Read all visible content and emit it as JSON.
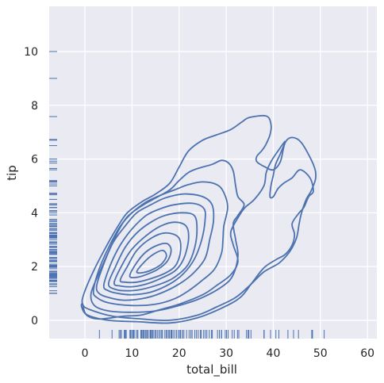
{
  "chart_data": {
    "type": "kde-contour-with-rug",
    "xlabel": "total_bill",
    "ylabel": "tip",
    "xlim": [
      -7.6,
      62
    ],
    "ylim": [
      -0.68,
      11.68
    ],
    "x_ticks": [
      0,
      10,
      20,
      30,
      40,
      50,
      60
    ],
    "y_ticks": [
      0,
      2,
      4,
      6,
      8,
      10
    ],
    "grid": true,
    "style": {
      "background": "#eaeaf2",
      "gridline": "#ffffff",
      "line": "#4c72b0"
    },
    "contours": [
      {
        "level": 1,
        "points": [
          [
            -0.5,
            0.6
          ],
          [
            0.3,
            0.2
          ],
          [
            3,
            0.05
          ],
          [
            8,
            0.15
          ],
          [
            12,
            0.2
          ],
          [
            16,
            0.4
          ],
          [
            20,
            0.6
          ],
          [
            25,
            0.95
          ],
          [
            28,
            1.3
          ],
          [
            31,
            1.7
          ],
          [
            32.5,
            2.2
          ],
          [
            31.5,
            2.8
          ],
          [
            31,
            3.3
          ],
          [
            32.8,
            3.9
          ],
          [
            34,
            4.2
          ],
          [
            36,
            4.5
          ],
          [
            38,
            5.0
          ],
          [
            38.5,
            5.5
          ],
          [
            39.5,
            5.9
          ],
          [
            41,
            6.3
          ],
          [
            42.5,
            6.65
          ],
          [
            41.5,
            6.2
          ],
          [
            40.5,
            5.8
          ],
          [
            40,
            5.4
          ],
          [
            39.5,
            5.0
          ],
          [
            39.3,
            4.6
          ],
          [
            40,
            4.6
          ],
          [
            41,
            4.9
          ],
          [
            42.2,
            5.1
          ],
          [
            44,
            5.3
          ],
          [
            45.7,
            5.6
          ],
          [
            47.8,
            5.3
          ],
          [
            48.5,
            4.8
          ],
          [
            47.5,
            4.6
          ],
          [
            46.5,
            4.2
          ],
          [
            45.5,
            4.0
          ],
          [
            44,
            3.6
          ],
          [
            44.5,
            3.2
          ],
          [
            44,
            2.8
          ],
          [
            42.5,
            2.45
          ],
          [
            40.5,
            2.25
          ],
          [
            38,
            1.95
          ],
          [
            35.5,
            1.4
          ],
          [
            33,
            0.85
          ],
          [
            29,
            0.45
          ],
          [
            24,
            0.1
          ],
          [
            18,
            -0.1
          ],
          [
            11,
            -0.05
          ],
          [
            5,
            0.0
          ],
          [
            0.5,
            0.2
          ],
          [
            -0.7,
            0.5
          ]
        ],
        "closed": true
      },
      {
        "level": 1.5,
        "points": [
          [
            -0.5,
            0.6
          ],
          [
            -0.2,
            1.0
          ],
          [
            2,
            1.9
          ],
          [
            5,
            2.9
          ],
          [
            7,
            3.5
          ],
          [
            9,
            4.0
          ],
          [
            12,
            4.4
          ],
          [
            15,
            4.7
          ],
          [
            18,
            5.1
          ],
          [
            20,
            5.7
          ],
          [
            22,
            6.3
          ],
          [
            25,
            6.7
          ],
          [
            28,
            6.9
          ],
          [
            31,
            7.1
          ],
          [
            33.5,
            7.4
          ],
          [
            35,
            7.55
          ],
          [
            38.5,
            7.6
          ],
          [
            39.5,
            7.3
          ],
          [
            39.3,
            6.9
          ],
          [
            38.3,
            6.5
          ],
          [
            37.5,
            6.3
          ],
          [
            36.5,
            6.1
          ],
          [
            36.5,
            5.9
          ],
          [
            38.3,
            5.7
          ],
          [
            40,
            5.6
          ],
          [
            41.5,
            5.9
          ],
          [
            42.5,
            6.6
          ],
          [
            44,
            6.8
          ],
          [
            46,
            6.6
          ],
          [
            48.5,
            5.8
          ],
          [
            49,
            5.3
          ],
          [
            48,
            4.8
          ],
          [
            47,
            4.5
          ],
          [
            46,
            4.0
          ],
          [
            45.5,
            3.6
          ],
          [
            45,
            3.1
          ],
          [
            44,
            2.7
          ],
          [
            42.8,
            2.4
          ],
          [
            41,
            2.1
          ],
          [
            38,
            1.8
          ],
          [
            35,
            1.3
          ],
          [
            32,
            0.85
          ],
          [
            28,
            0.5
          ],
          [
            24,
            0.2
          ],
          [
            18,
            0.0
          ],
          [
            12,
            0.05
          ],
          [
            6,
            0.15
          ],
          [
            1,
            0.4
          ]
        ],
        "closed": true
      },
      {
        "level": 2,
        "points": [
          [
            1.3,
            1.0
          ],
          [
            3,
            1.75
          ],
          [
            5,
            2.55
          ],
          [
            7,
            3.3
          ],
          [
            9,
            3.85
          ],
          [
            12,
            4.25
          ],
          [
            15,
            4.55
          ],
          [
            18,
            4.85
          ],
          [
            20,
            5.2
          ],
          [
            22,
            5.5
          ],
          [
            24,
            5.65
          ],
          [
            27,
            5.8
          ],
          [
            29,
            5.95
          ],
          [
            30.5,
            5.85
          ],
          [
            31.5,
            5.55
          ],
          [
            32,
            5.0
          ],
          [
            32.5,
            4.6
          ],
          [
            33.8,
            4.3
          ],
          [
            32.5,
            3.9
          ],
          [
            31.5,
            3.6
          ],
          [
            32,
            3.0
          ],
          [
            32.5,
            2.4
          ],
          [
            31.5,
            1.7
          ],
          [
            29.5,
            1.3
          ],
          [
            25,
            0.85
          ],
          [
            20,
            0.55
          ],
          [
            15,
            0.35
          ],
          [
            10,
            0.3
          ],
          [
            5,
            0.35
          ],
          [
            2,
            0.55
          ]
        ],
        "closed": true
      },
      {
        "level": 3,
        "points": [
          [
            1.8,
            1.1
          ],
          [
            3,
            1.9
          ],
          [
            5,
            2.7
          ],
          [
            7.5,
            3.5
          ],
          [
            10,
            4.0
          ],
          [
            13,
            4.4
          ],
          [
            16,
            4.65
          ],
          [
            19,
            4.85
          ],
          [
            22,
            5.05
          ],
          [
            25,
            5.15
          ],
          [
            28,
            5.05
          ],
          [
            29.5,
            4.75
          ],
          [
            30.3,
            4.2
          ],
          [
            29.5,
            3.5
          ],
          [
            29.3,
            3.0
          ],
          [
            29,
            2.5
          ],
          [
            27.5,
            1.9
          ],
          [
            25,
            1.5
          ],
          [
            22,
            1.1
          ],
          [
            19,
            0.8
          ],
          [
            15,
            0.6
          ],
          [
            10,
            0.55
          ],
          [
            5,
            0.65
          ],
          [
            2.5,
            0.85
          ]
        ],
        "closed": true
      },
      {
        "level": 4,
        "points": [
          [
            2.5,
            1.3
          ],
          [
            4,
            2.1
          ],
          [
            6,
            2.9
          ],
          [
            8.5,
            3.5
          ],
          [
            11,
            4.0
          ],
          [
            14,
            4.3
          ],
          [
            17,
            4.55
          ],
          [
            21,
            4.7
          ],
          [
            25,
            4.6
          ],
          [
            27,
            4.3
          ],
          [
            27.3,
            3.7
          ],
          [
            26.5,
            3.0
          ],
          [
            25.5,
            2.3
          ],
          [
            23,
            1.75
          ],
          [
            20,
            1.35
          ],
          [
            16,
            1.0
          ],
          [
            12,
            0.8
          ],
          [
            8,
            0.75
          ],
          [
            5,
            0.85
          ],
          [
            3,
            1.0
          ]
        ],
        "closed": true
      },
      {
        "level": 5,
        "points": [
          [
            4,
            1.3
          ],
          [
            5.5,
            2.1
          ],
          [
            7.5,
            2.8
          ],
          [
            10,
            3.4
          ],
          [
            13,
            3.9
          ],
          [
            16,
            4.15
          ],
          [
            19,
            4.3
          ],
          [
            23,
            4.35
          ],
          [
            25.3,
            4.15
          ],
          [
            25.5,
            3.7
          ],
          [
            24.8,
            3.0
          ],
          [
            23.3,
            2.3
          ],
          [
            21,
            1.75
          ],
          [
            18,
            1.35
          ],
          [
            14,
            1.05
          ],
          [
            10,
            0.95
          ],
          [
            7,
            1.0
          ],
          [
            5,
            1.1
          ]
        ],
        "closed": true
      },
      {
        "level": 6,
        "points": [
          [
            5,
            1.35
          ],
          [
            6.5,
            2.0
          ],
          [
            8.5,
            2.7
          ],
          [
            11,
            3.25
          ],
          [
            14,
            3.65
          ],
          [
            17,
            3.9
          ],
          [
            20.5,
            4.0
          ],
          [
            23.2,
            3.9
          ],
          [
            23.8,
            3.4
          ],
          [
            23.3,
            2.7
          ],
          [
            21.8,
            2.05
          ],
          [
            19,
            1.6
          ],
          [
            16,
            1.35
          ],
          [
            12,
            1.15
          ],
          [
            9,
            1.1
          ],
          [
            6.5,
            1.15
          ]
        ],
        "closed": true
      },
      {
        "level": 7,
        "points": [
          [
            6.2,
            1.4
          ],
          [
            8,
            2.1
          ],
          [
            10,
            2.65
          ],
          [
            13,
            3.15
          ],
          [
            16,
            3.5
          ],
          [
            19,
            3.65
          ],
          [
            21.5,
            3.5
          ],
          [
            22,
            3.0
          ],
          [
            21,
            2.3
          ],
          [
            19.2,
            1.85
          ],
          [
            16,
            1.55
          ],
          [
            13,
            1.35
          ],
          [
            10,
            1.25
          ],
          [
            7.5,
            1.28
          ]
        ],
        "closed": true
      },
      {
        "level": 8,
        "points": [
          [
            7.5,
            1.5
          ],
          [
            9,
            2.0
          ],
          [
            11,
            2.6
          ],
          [
            14,
            3.05
          ],
          [
            17,
            3.25
          ],
          [
            19.8,
            3.1
          ],
          [
            20.3,
            2.6
          ],
          [
            19.3,
            2.05
          ],
          [
            17,
            1.75
          ],
          [
            14,
            1.55
          ],
          [
            11,
            1.42
          ],
          [
            8.5,
            1.42
          ]
        ],
        "closed": true
      },
      {
        "level": 9,
        "points": [
          [
            9.5,
            1.65
          ],
          [
            11,
            2.15
          ],
          [
            13,
            2.55
          ],
          [
            15.5,
            2.8
          ],
          [
            17.5,
            2.85
          ],
          [
            18.3,
            2.6
          ],
          [
            17.5,
            2.2
          ],
          [
            15.5,
            1.9
          ],
          [
            13,
            1.7
          ],
          [
            11,
            1.6
          ]
        ],
        "closed": true
      },
      {
        "level": 10,
        "points": [
          [
            11,
            1.8
          ],
          [
            12.5,
            2.15
          ],
          [
            14.5,
            2.45
          ],
          [
            16.5,
            2.6
          ],
          [
            17.3,
            2.4
          ],
          [
            16.3,
            2.1
          ],
          [
            14.5,
            1.9
          ],
          [
            12.5,
            1.78
          ]
        ],
        "closed": true
      }
    ],
    "rug_x": [
      3.07,
      5.75,
      7.25,
      7.51,
      7.74,
      8.35,
      8.51,
      8.52,
      8.58,
      8.77,
      9.55,
      9.6,
      9.68,
      9.78,
      10.07,
      10.27,
      10.33,
      10.34,
      10.59,
      11.02,
      11.24,
      11.87,
      12.02,
      12.26,
      12.46,
      12.6,
      12.9,
      13.0,
      13.27,
      13.42,
      13.81,
      13.94,
      14.07,
      14.31,
      14.48,
      14.83,
      15.04,
      15.36,
      15.69,
      15.98,
      16.29,
      16.45,
      16.97,
      17.26,
      17.51,
      17.82,
      17.92,
      18.24,
      18.29,
      18.43,
      18.71,
      19.08,
      19.44,
      19.81,
      20.08,
      20.29,
      20.65,
      20.69,
      21.01,
      21.58,
      22.12,
      22.49,
      22.76,
      23.33,
      23.68,
      24.06,
      24.52,
      24.71,
      25.21,
      25.56,
      25.89,
      26.41,
      26.88,
      27.05,
      28.15,
      28.55,
      28.97,
      29.03,
      29.8,
      30.06,
      30.4,
      31.27,
      31.71,
      32.4,
      32.68,
      34.3,
      34.65,
      34.81,
      35.26,
      38.01,
      38.07,
      39.42,
      40.55,
      41.19,
      43.11,
      44.3,
      45.35,
      48.17,
      48.27,
      48.33,
      50.81
    ],
    "rug_y": [
      1.0,
      1.01,
      1.1,
      1.25,
      1.32,
      1.36,
      1.44,
      1.45,
      1.47,
      1.48,
      1.5,
      1.56,
      1.58,
      1.61,
      1.63,
      1.64,
      1.66,
      1.67,
      1.68,
      1.71,
      1.73,
      1.76,
      1.8,
      1.83,
      1.92,
      1.97,
      1.98,
      2.0,
      2.01,
      2.02,
      2.03,
      2.05,
      2.09,
      2.18,
      2.2,
      2.23,
      2.24,
      2.3,
      2.31,
      2.34,
      2.45,
      2.47,
      2.5,
      2.52,
      2.54,
      2.55,
      2.56,
      2.6,
      2.64,
      2.71,
      2.72,
      2.74,
      2.75,
      2.83,
      2.88,
      2.91,
      2.92,
      3.0,
      3.06,
      3.08,
      3.09,
      3.11,
      3.14,
      3.15,
      3.16,
      3.18,
      3.23,
      3.25,
      3.27,
      3.35,
      3.39,
      3.41,
      3.48,
      3.5,
      3.51,
      3.55,
      3.6,
      3.61,
      3.68,
      3.71,
      3.76,
      3.92,
      4.0,
      4.06,
      4.08,
      4.19,
      4.2,
      4.29,
      4.3,
      4.34,
      4.5,
      4.67,
      4.71,
      4.73,
      5.0,
      5.07,
      5.14,
      5.16,
      5.17,
      5.2,
      5.6,
      5.65,
      5.85,
      5.92,
      6.0,
      6.5,
      6.7,
      6.73,
      7.58,
      9.0,
      10.0
    ]
  }
}
